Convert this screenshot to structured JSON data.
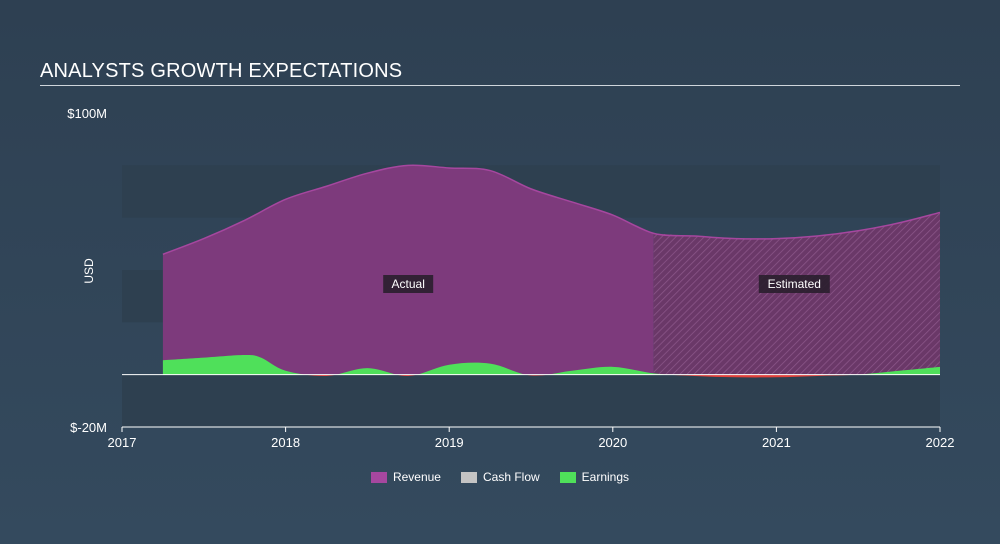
{
  "title": "ANALYSTS GROWTH EXPECTATIONS",
  "colors": {
    "revenue": "#a6479f",
    "revenue_fill": "#7d3a7c",
    "cash_flow": "#c4c4c4",
    "earnings": "#4fe05a",
    "negative": "#e0413b",
    "band": "#2e4050"
  },
  "chart_data": {
    "type": "area",
    "xlabel": "",
    "ylabel": "USD",
    "ylim": [
      -20,
      100
    ],
    "y_tick_labels": [
      "$100M",
      "$-20M"
    ],
    "x_ticks": [
      2017,
      2018,
      2019,
      2020,
      2021,
      2022
    ],
    "x_tick_labels": [
      "2017",
      "2018",
      "2019",
      "2020",
      "2021",
      "2022"
    ],
    "annotations": [
      "Actual",
      "Estimated"
    ],
    "estimate_start": 2020.25,
    "series": [
      {
        "name": "Revenue",
        "x": [
          2017.25,
          2017.5,
          2017.75,
          2018.0,
          2018.25,
          2018.5,
          2018.75,
          2019.0,
          2019.25,
          2019.5,
          2019.75,
          2020.0,
          2020.25,
          2020.5,
          2020.75,
          2021.0,
          2021.25,
          2021.5,
          2021.75,
          2022.0
        ],
        "values": [
          46,
          52,
          59,
          67,
          72,
          77,
          80,
          79,
          78,
          71,
          66,
          61,
          54,
          53,
          52,
          52,
          53,
          55,
          58,
          62
        ]
      },
      {
        "name": "Cash Flow",
        "x": [],
        "values": []
      },
      {
        "name": "Earnings",
        "x": [
          2017.25,
          2017.5,
          2017.75,
          2017.85,
          2018.0,
          2018.25,
          2018.5,
          2018.75,
          2019.0,
          2019.25,
          2019.5,
          2019.75,
          2020.0,
          2020.25,
          2020.5,
          2020.75,
          2021.0,
          2021.25,
          2021.5,
          2021.75,
          2022.0
        ],
        "values": [
          5.5,
          6.5,
          7.5,
          6.5,
          1.5,
          -0.5,
          2.5,
          -0.5,
          3.8,
          4.2,
          -0.3,
          1.5,
          3,
          0.5,
          -0.5,
          -1,
          -1,
          -0.5,
          0,
          1.5,
          3
        ]
      }
    ],
    "legend": [
      "Revenue",
      "Cash Flow",
      "Earnings"
    ],
    "legend_position": "bottom"
  }
}
